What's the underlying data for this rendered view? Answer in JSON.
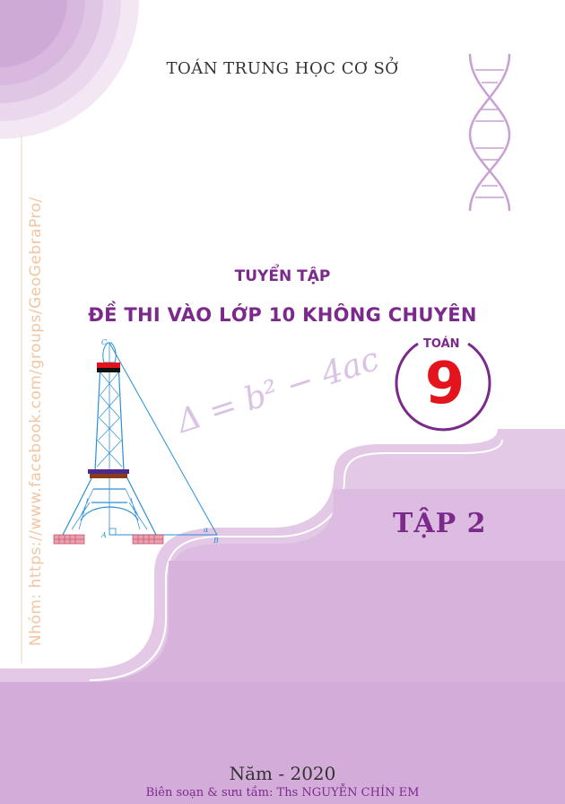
{
  "header": {
    "topline": "TOÁN TRUNG HỌC CƠ SỞ"
  },
  "cover": {
    "collection": "TUYỂN TẬP",
    "title": "ĐỀ THI VÀO LỚP 10 KHÔNG CHUYÊN",
    "subject": "TOÁN",
    "grade": "9",
    "formula": "Δ = b² − 4ac",
    "volume": "TẬP 2"
  },
  "side_link": "Nhóm: https://www.facebook.com/groups/GeoGebraPro/",
  "figure_labels": {
    "top": "C",
    "left": "A",
    "right": "B",
    "angle": "α"
  },
  "footer": {
    "year": "Năm - 2020",
    "author": "Biên soạn & sưu tầm: Ths NGUYỄN CHÍN EM"
  },
  "colors": {
    "accent": "#7b2a8c",
    "grade_red": "#e3141c",
    "panel_light": "#e3c9e6",
    "panel_mid": "#d7b3dc",
    "panel_dark": "#cfa6d6",
    "tower_blue": "#2a8fd6"
  }
}
